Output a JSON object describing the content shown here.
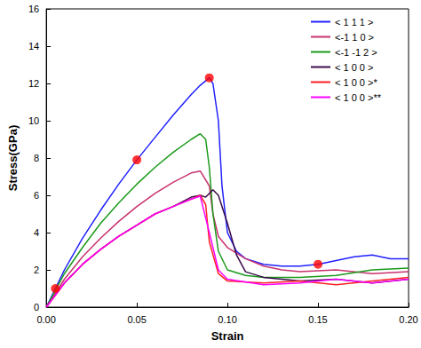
{
  "chart_data": {
    "type": "line",
    "x_label": "Strain",
    "y_label": "Stress(GPa)",
    "xlim": [
      0,
      0.2
    ],
    "ylim": [
      0,
      16
    ],
    "xticks": [
      {
        "value": 0,
        "label": "0.00"
      },
      {
        "value": 0.05,
        "label": "0.05"
      },
      {
        "value": 0.1,
        "label": "0.10"
      },
      {
        "value": 0.15,
        "label": "0.15"
      },
      {
        "value": 0.2,
        "label": "0.20"
      }
    ],
    "yticks": [
      0,
      2,
      4,
      6,
      8,
      10,
      12,
      14,
      16
    ],
    "grid": false,
    "legend": "top-right",
    "series": [
      {
        "name": "< 1 1 1 >",
        "color": "#2020ff",
        "x": [
          0,
          0.005,
          0.01,
          0.02,
          0.03,
          0.04,
          0.05,
          0.06,
          0.07,
          0.08,
          0.085,
          0.09,
          0.092,
          0.095,
          0.097,
          0.1,
          0.105,
          0.11,
          0.12,
          0.13,
          0.14,
          0.15,
          0.16,
          0.17,
          0.18,
          0.19,
          0.2
        ],
        "values": [
          0,
          1.0,
          2.0,
          3.7,
          5.2,
          6.6,
          7.9,
          9.1,
          10.3,
          11.4,
          11.9,
          12.3,
          12.0,
          10.0,
          6.5,
          4.0,
          3.0,
          2.6,
          2.3,
          2.2,
          2.2,
          2.3,
          2.5,
          2.7,
          2.8,
          2.6,
          2.6
        ]
      },
      {
        "name": "<-1 1 0 >",
        "color": "#c8326e",
        "x": [
          0,
          0.01,
          0.02,
          0.03,
          0.04,
          0.05,
          0.06,
          0.07,
          0.08,
          0.085,
          0.09,
          0.092,
          0.095,
          0.1,
          0.11,
          0.12,
          0.13,
          0.14,
          0.16,
          0.18,
          0.2
        ],
        "values": [
          0,
          1.5,
          2.7,
          3.7,
          4.6,
          5.4,
          6.1,
          6.7,
          7.2,
          7.3,
          6.5,
          5.0,
          3.8,
          3.2,
          2.6,
          2.2,
          2.0,
          1.9,
          2.0,
          1.8,
          1.9
        ]
      },
      {
        "name": "<-1 -1 2 >",
        "color": "#1a9a1a",
        "x": [
          0,
          0.01,
          0.02,
          0.03,
          0.04,
          0.05,
          0.06,
          0.07,
          0.08,
          0.085,
          0.088,
          0.09,
          0.092,
          0.095,
          0.1,
          0.11,
          0.12,
          0.14,
          0.16,
          0.18,
          0.2
        ],
        "values": [
          0,
          1.8,
          3.2,
          4.5,
          5.6,
          6.6,
          7.5,
          8.3,
          9.0,
          9.3,
          9.0,
          7.5,
          5.0,
          3.0,
          2.0,
          1.7,
          1.6,
          1.6,
          1.7,
          2.0,
          2.1
        ]
      },
      {
        "name": "< 1 0 0 >",
        "color": "#3a0a4a",
        "x": [
          0,
          0.01,
          0.02,
          0.03,
          0.04,
          0.05,
          0.06,
          0.07,
          0.08,
          0.085,
          0.088,
          0.092,
          0.095,
          0.1,
          0.105,
          0.11,
          0.12,
          0.14,
          0.16,
          0.18,
          0.2
        ],
        "values": [
          0,
          1.3,
          2.3,
          3.1,
          3.8,
          4.4,
          5.0,
          5.4,
          5.9,
          6.0,
          5.9,
          6.3,
          6.0,
          4.5,
          2.8,
          1.9,
          1.6,
          1.4,
          1.5,
          1.3,
          1.5
        ]
      },
      {
        "name": "< 1 0 0 >*",
        "color": "#ff2020",
        "x": [
          0,
          0.01,
          0.02,
          0.03,
          0.04,
          0.05,
          0.06,
          0.07,
          0.08,
          0.085,
          0.088,
          0.09,
          0.095,
          0.1,
          0.12,
          0.14,
          0.16,
          0.18,
          0.2
        ],
        "values": [
          0,
          1.3,
          2.3,
          3.1,
          3.8,
          4.4,
          5.0,
          5.4,
          5.8,
          6.0,
          5.5,
          3.5,
          1.8,
          1.4,
          1.3,
          1.4,
          1.2,
          1.4,
          1.6
        ]
      },
      {
        "name": "< 1 0 0 >**",
        "color": "#ff00ff",
        "x": [
          0,
          0.01,
          0.02,
          0.03,
          0.04,
          0.05,
          0.06,
          0.07,
          0.08,
          0.085,
          0.09,
          0.095,
          0.1,
          0.12,
          0.14,
          0.16,
          0.18,
          0.2
        ],
        "values": [
          0,
          1.3,
          2.3,
          3.1,
          3.8,
          4.4,
          5.0,
          5.4,
          5.8,
          5.95,
          4.0,
          2.0,
          1.5,
          1.2,
          1.3,
          1.5,
          1.3,
          1.5
        ]
      }
    ],
    "highlight_points": {
      "color": "#ff0000",
      "x": [
        0.005,
        0.05,
        0.09,
        0.15
      ],
      "values": [
        1.0,
        7.9,
        12.3,
        2.3
      ]
    }
  }
}
